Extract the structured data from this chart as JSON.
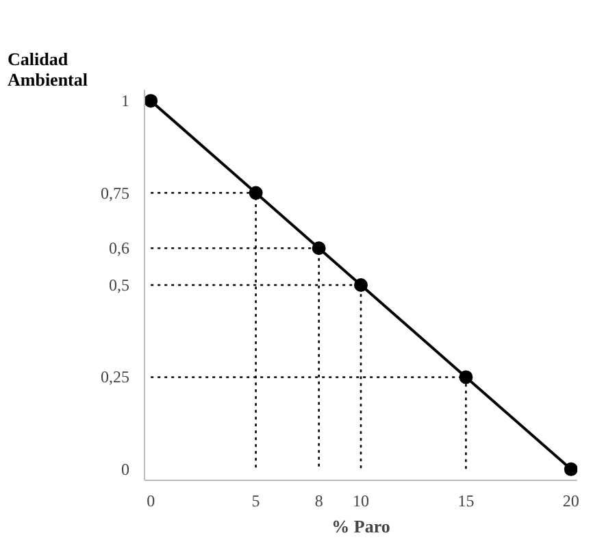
{
  "chart_data": {
    "type": "line",
    "xlabel": "% Paro",
    "ylabel": "Calidad Ambiental",
    "x": [
      0,
      5,
      8,
      10,
      15,
      20
    ],
    "series": [
      {
        "color": "#000000",
        "values": [
          1,
          0.75,
          0.6,
          0.5,
          0.25,
          0
        ]
      },
      {
        "color": "#000000",
        "x": [
          0,
          5,
          5
        ],
        "values": [
          0.75,
          0.75,
          0
        ],
        "line_style": "dotted",
        "marker": "none"
      },
      {
        "color": "#000000",
        "x": [
          0,
          8,
          8
        ],
        "values": [
          0.6,
          0.6,
          0
        ],
        "line_style": "dotted",
        "marker": "none"
      },
      {
        "color": "#000000",
        "x": [
          0,
          10,
          10
        ],
        "values": [
          0.5,
          0.5,
          0
        ],
        "line_style": "dotted",
        "marker": "none"
      },
      {
        "color": "#000000",
        "x": [
          0,
          15,
          15
        ],
        "values": [
          0.25,
          0.25,
          0
        ],
        "line_style": "dotted",
        "marker": "none"
      }
    ],
    "marker": "circle",
    "line_style": "solid",
    "xlim": [
      -0.3,
      20.3
    ],
    "ylim": [
      -0.03,
      1.03
    ],
    "xticks": [
      0,
      5,
      8,
      10,
      15,
      20
    ],
    "yticks": [
      0,
      {
        "value": 0.25,
        "label": "0,25"
      },
      {
        "value": 0.5,
        "label": "0,5"
      },
      {
        "value": 0.6,
        "label": "0,6"
      },
      {
        "value": 0.75,
        "label": "0,75"
      },
      1
    ]
  }
}
